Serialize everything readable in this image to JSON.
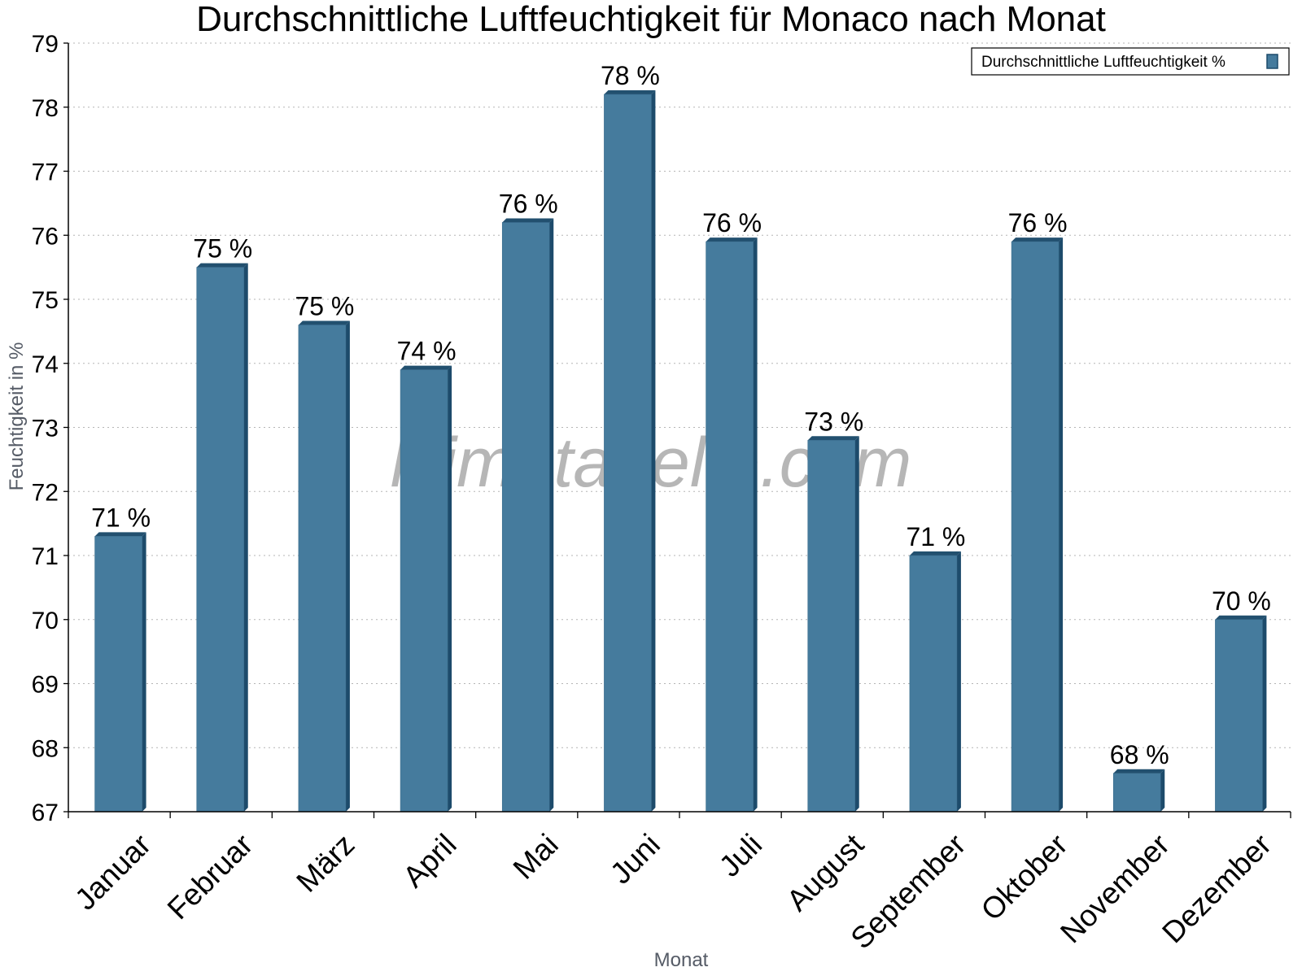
{
  "chart_data": {
    "type": "bar",
    "title": "Durchschnittliche Luftfeuchtigkeit für Monaco nach Monat",
    "xlabel": "Monat",
    "ylabel": "Feuchtigkeit in %",
    "ylim": [
      67,
      79
    ],
    "yticks": [
      "67",
      "68",
      "69",
      "70",
      "71",
      "72",
      "73",
      "74",
      "75",
      "76",
      "77",
      "78",
      "79"
    ],
    "grid": true,
    "legend_position": "top-right",
    "categories": [
      "Januar",
      "Februar",
      "März",
      "April",
      "Mai",
      "Juni",
      "Juli",
      "August",
      "September",
      "Oktober",
      "November",
      "Dezember"
    ],
    "series": [
      {
        "name": "Durchschnittliche Luftfeuchtigkeit %",
        "values": [
          71.3,
          75.5,
          74.6,
          73.9,
          76.2,
          78.2,
          75.9,
          72.8,
          71.0,
          75.9,
          67.6,
          70.0
        ],
        "labels": [
          "71 %",
          "75 %",
          "75 %",
          "74 %",
          "76 %",
          "78 %",
          "76 %",
          "73 %",
          "71 %",
          "76 %",
          "68 %",
          "70 %"
        ]
      }
    ],
    "colors": {
      "bar": "#457b9d",
      "bar_side": "#1d4b6b",
      "bar_top": "#22506f",
      "grid": "#b5b5b5",
      "axis": "#000000"
    },
    "watermark": "klimatabelle.com"
  }
}
